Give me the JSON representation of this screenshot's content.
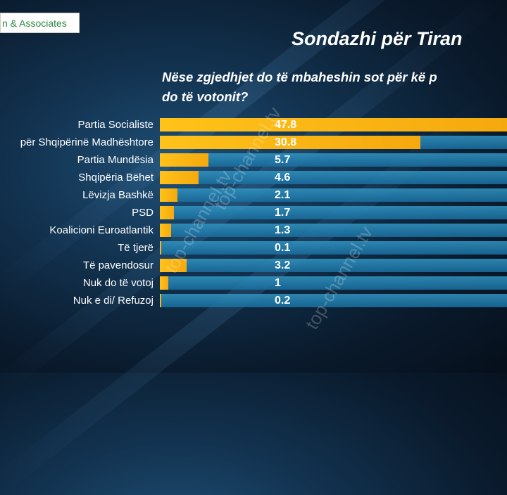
{
  "logo_text": "n & Associates",
  "title": "Sondazhi për Tiran",
  "subtitle": [
    "Nëse zgjedhjet do të mbaheshin sot për kë p",
    "do të votonit?"
  ],
  "watermark_text": "top-channel.tv",
  "chart_data": {
    "type": "bar",
    "orientation": "horizontal",
    "categories": [
      "Partia Socialiste",
      "për Shqipërinë Madhështore",
      "Partia Mundësia",
      "Shqipëria Bëhet",
      "Lëvizja Bashkë",
      "PSD",
      "Koalicioni Euroatlantik",
      "Të tjerë",
      "Të pavendosur",
      "Nuk do të votoj",
      "Nuk e di/ Refuzoj"
    ],
    "values": [
      47.8,
      30.8,
      5.7,
      4.6,
      2.1,
      1.7,
      1.3,
      0.1,
      3.2,
      1,
      0.2
    ],
    "value_labels": [
      "47.8",
      "30.8",
      "5.7",
      "4.6",
      "2.1",
      "1.7",
      "1.3",
      "0.1",
      "3.2",
      "1",
      "0.2"
    ],
    "xlim": [
      0,
      41
    ],
    "colors": {
      "bar": "#f5b512",
      "track": "#2a8ab8"
    }
  }
}
